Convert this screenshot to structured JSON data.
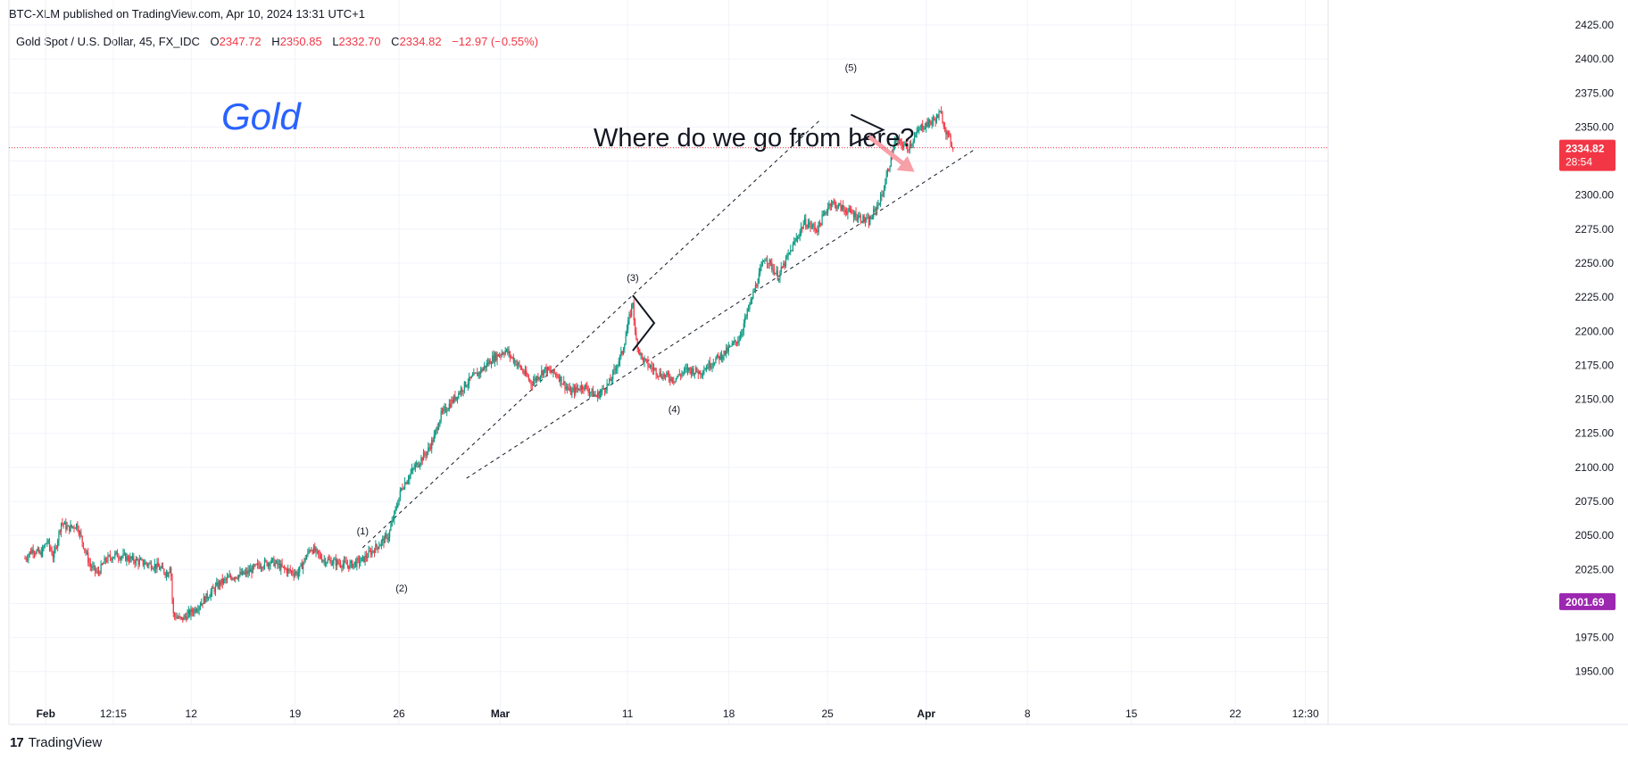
{
  "header": {
    "credit": "BTC-XLM published on TradingView.com, Apr 10, 2024 13:31 UTC+1"
  },
  "symbol_line": {
    "symbol": "Gold Spot / U.S. Dollar, 45, FX_IDC",
    "open_label": "O",
    "open": "2347.72",
    "high_label": "H",
    "high": "2350.85",
    "low_label": "L",
    "low": "2332.70",
    "close_label": "C",
    "close": "2334.82",
    "change": "−12.97 (−0.55%)"
  },
  "annotations": {
    "title_text": "Gold",
    "question_text": "Where do we go from here?",
    "wave_labels": [
      "(1)",
      "(2)",
      "(3)",
      "(4)",
      "(5)"
    ]
  },
  "price_tags": {
    "last_price": "2334.82",
    "countdown": "28:54",
    "second_price": "2001.69"
  },
  "footer": {
    "brand": "TradingView",
    "logo_mark": "17"
  },
  "colors": {
    "up": "#089981",
    "down": "#f23645",
    "last_price_tag": "#f23645",
    "second_price_tag": "#9c27b0",
    "gold_text": "#2962ff",
    "arrow": "#f7a0a8"
  },
  "chart_data": {
    "type": "candlestick",
    "ylim": [
      1940,
      2425
    ],
    "y_ticks": [
      1950,
      1975,
      2000,
      2025,
      2050,
      2075,
      2100,
      2125,
      2150,
      2175,
      2200,
      2225,
      2250,
      2275,
      2300,
      2325,
      2350,
      2375,
      2400,
      2425
    ],
    "x_tick_labels": [
      "Feb",
      "12:15",
      "12",
      "19",
      "26",
      "Mar",
      "11",
      "18",
      "25",
      "Apr",
      "8",
      "15",
      "22",
      "12:30"
    ],
    "x_tick_bold": [
      true,
      false,
      false,
      false,
      false,
      true,
      false,
      false,
      false,
      true,
      false,
      false,
      false,
      false
    ],
    "price_path_days": [
      0.0,
      0.6,
      1.2,
      1.7,
      2.2,
      2.8,
      3.3,
      4.0,
      5.0,
      5.6,
      6.2,
      7.0,
      8.0,
      9.0,
      10.0,
      11.0,
      11.2,
      11.4,
      12.0,
      13.0,
      14.0,
      15.0,
      16.0,
      17.0,
      18.0,
      19.0,
      20.0,
      21.0,
      22.0,
      23.0,
      24.0,
      25.0,
      26.0,
      27.0,
      28.0,
      29.0,
      30.0,
      31.0,
      31.5,
      32.0,
      33.0,
      34.0,
      35.0,
      36.0,
      37.0,
      38.0,
      39.0,
      40.0,
      41.0,
      42.0,
      43.0,
      44.0,
      45.0,
      46.0,
      46.8,
      47.0,
      47.5,
      48.0,
      49.0,
      50.0,
      51.0,
      52.0,
      53.0,
      54.0,
      55.0,
      56.0,
      57.0,
      58.0,
      59.0,
      60.0,
      61.0,
      62.0,
      63.0,
      64.0,
      65.0,
      66.0,
      67.0,
      68.0,
      69.0,
      70.0,
      70.5,
      71.0,
      71.5
    ],
    "price_path_values": [
      2033,
      2040,
      2036,
      2046,
      2034,
      2060,
      2055,
      2058,
      2028,
      2022,
      2032,
      2036,
      2033,
      2030,
      2028,
      2022,
      2030,
      1992,
      1988,
      1995,
      2005,
      2015,
      2020,
      2022,
      2028,
      2031,
      2025,
      2022,
      2041,
      2032,
      2030,
      2028,
      2032,
      2041,
      2050,
      2085,
      2100,
      2112,
      2122,
      2138,
      2150,
      2162,
      2170,
      2180,
      2186,
      2175,
      2162,
      2172,
      2168,
      2155,
      2160,
      2152,
      2162,
      2185,
      2222,
      2195,
      2180,
      2175,
      2168,
      2165,
      2172,
      2170,
      2178,
      2185,
      2195,
      2225,
      2255,
      2240,
      2260,
      2280,
      2275,
      2295,
      2290,
      2285,
      2280,
      2300,
      2340,
      2335,
      2350,
      2355,
      2360,
      2345,
      2334.82
    ],
    "trend_line_upper": {
      "from": [
        26.0,
        2041
      ],
      "to": [
        61.2,
        2355
      ]
    },
    "trend_line_lower": {
      "from": [
        34.0,
        2092
      ],
      "to": [
        73.2,
        2334
      ]
    },
    "wave_points": [
      {
        "label": "(1)",
        "day": 26.0,
        "value": 2043
      },
      {
        "label": "(2)",
        "day": 29.0,
        "value": 2026
      },
      {
        "label": "(3)",
        "day": 46.8,
        "value": 2225
      },
      {
        "label": "(4)",
        "day": 50.0,
        "value": 2160
      },
      {
        "label": "(5)",
        "day": 63.6,
        "value": 2365
      }
    ],
    "current_price": 2334.82,
    "second_level": 2001.69
  }
}
